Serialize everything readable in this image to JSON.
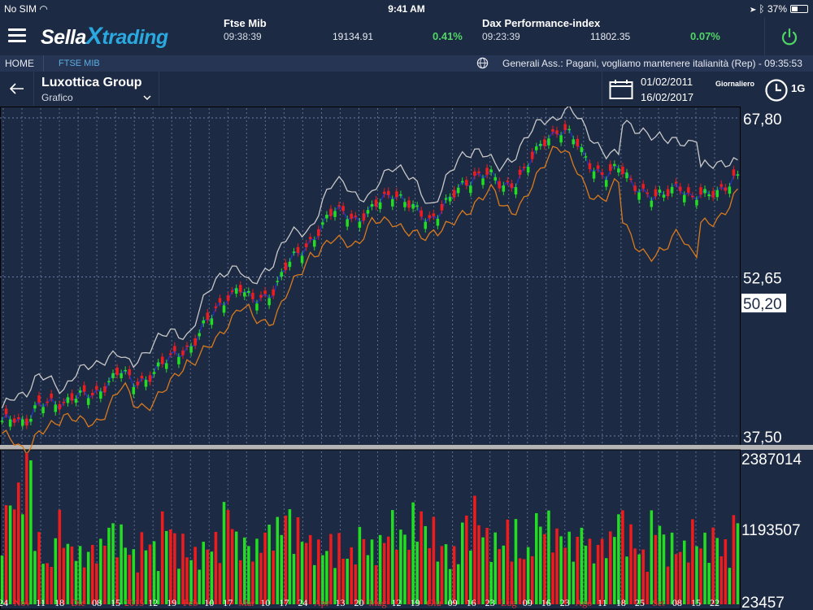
{
  "status_bar": {
    "carrier": "No SIM",
    "time": "9:41 AM",
    "battery": "37%"
  },
  "header": {
    "logo_part1": "Sella",
    "logo_x": "X",
    "logo_part2": "trading",
    "tickers": [
      {
        "name": "Ftse Mib",
        "time": "09:38:39",
        "value": "19134.91",
        "change": "0.41%"
      },
      {
        "name": "Dax Performance-index",
        "time": "09:23:39",
        "value": "11802.35",
        "change": "0.07%"
      }
    ]
  },
  "subnav": {
    "home": "HOME",
    "section": "FTSE MIB",
    "news": "Generali Ass.: Pagani, vogliamo mantenere italianità (Rep)  - 09:35:53"
  },
  "instrument": {
    "name": "Luxottica Group",
    "view": "Grafico",
    "date_from": "01/02/2011",
    "date_to": "16/02/2017",
    "period_label": "Giornaliero",
    "interval": "1G"
  },
  "colors": {
    "up": "#22dd22",
    "down": "#ee1c1c",
    "bg": "#1d2a44",
    "upper_band": "#c8c8c8",
    "lower_band": "#d97a1c",
    "mid_band": "#2233cc",
    "accent": "#2aa9e0",
    "change_positive": "#4fd665"
  },
  "chart_data": {
    "type": "candlestick+volume",
    "price_axis": {
      "ticks": [
        67.8,
        52.65,
        37.5
      ],
      "current": 50.2,
      "range": [
        37.5,
        67.8
      ]
    },
    "volume_axis": {
      "ticks": [
        "2387014",
        "1193507",
        "23457"
      ]
    },
    "x_labels": [
      {
        "text": "24",
        "color": "#ffffff"
      },
      {
        "text": "Nov",
        "color": "#ee3333"
      },
      {
        "text": "11",
        "color": "#ffffff"
      },
      {
        "text": "18",
        "color": "#ffffff"
      },
      {
        "text": "Dic",
        "color": "#ee3333"
      },
      {
        "text": "08",
        "color": "#ffffff"
      },
      {
        "text": "15",
        "color": "#ffffff"
      },
      {
        "text": "2015",
        "color": "#ee3333"
      },
      {
        "text": "12",
        "color": "#ffffff"
      },
      {
        "text": "19",
        "color": "#ffffff"
      },
      {
        "text": "Feb",
        "color": "#ee3333"
      },
      {
        "text": "10",
        "color": "#ffffff"
      },
      {
        "text": "17",
        "color": "#ffffff"
      },
      {
        "text": "Mar",
        "color": "#ee3333"
      },
      {
        "text": "10",
        "color": "#ffffff"
      },
      {
        "text": "17",
        "color": "#ffffff"
      },
      {
        "text": "24",
        "color": "#ffffff"
      },
      {
        "text": "Apr",
        "color": "#ee3333"
      },
      {
        "text": "13",
        "color": "#ffffff"
      },
      {
        "text": "20",
        "color": "#ffffff"
      },
      {
        "text": "Mag",
        "color": "#ee3333"
      },
      {
        "text": "12",
        "color": "#ffffff"
      },
      {
        "text": "19",
        "color": "#ffffff"
      },
      {
        "text": "Giu",
        "color": "#ee3333"
      },
      {
        "text": "09",
        "color": "#ffffff"
      },
      {
        "text": "16",
        "color": "#ffffff"
      },
      {
        "text": "23",
        "color": "#ffffff"
      },
      {
        "text": "Lug",
        "color": "#ee3333"
      },
      {
        "text": "09",
        "color": "#ffffff"
      },
      {
        "text": "16",
        "color": "#ffffff"
      },
      {
        "text": "23",
        "color": "#ffffff"
      },
      {
        "text": "Ago",
        "color": "#ee3333"
      },
      {
        "text": "11",
        "color": "#ffffff"
      },
      {
        "text": "18",
        "color": "#ffffff"
      },
      {
        "text": "25",
        "color": "#ffffff"
      },
      {
        "text": "Set",
        "color": "#ee3333"
      },
      {
        "text": "08",
        "color": "#ffffff"
      },
      {
        "text": "15",
        "color": "#ffffff"
      },
      {
        "text": "22",
        "color": "#ffffff"
      }
    ],
    "close_series": [
      38.6,
      39.3,
      39.0,
      40.2,
      40.5,
      40.8,
      41.3,
      41.1,
      41.6,
      42.9,
      43.6,
      42.4,
      43.0,
      43.8,
      44.6,
      45.6,
      46.2,
      47.8,
      49.4,
      51.0,
      51.6,
      50.2,
      50.8,
      51.6,
      53.6,
      54.9,
      56.2,
      57.4,
      58.9,
      59.0,
      58.0,
      58.6,
      60.2,
      60.9,
      59.6,
      58.8,
      58.2,
      59.1,
      60.2,
      61.6,
      62.5,
      62.4,
      61.2,
      61.6,
      62.8,
      64.3,
      66.0,
      66.9,
      66.0,
      64.1,
      63.0,
      62.3,
      62.9,
      61.9,
      60.9,
      59.9,
      60.6,
      61.8,
      60.0,
      60.2,
      60.9,
      61.4,
      61.9
    ],
    "volume_series": [
      1400000,
      1700000,
      2387014,
      1000000,
      600000,
      1300000,
      900000,
      800000,
      900000,
      1200000,
      1100000,
      800000,
      1000000,
      900000,
      1300000,
      1000000,
      800000,
      900000,
      1000000,
      1500000,
      1000000,
      900000,
      1100000,
      1200000,
      1400000,
      1200000,
      1000000,
      900000,
      1000000,
      800000,
      1100000,
      900000,
      1000000,
      1300000,
      1100000,
      1400000,
      1200000,
      900000,
      800000,
      1300000,
      1500000,
      1100000,
      1000000,
      1200000,
      800000,
      1300000,
      1300000,
      1100000,
      1000000,
      1200000,
      900000,
      1000000,
      1400000,
      1100000,
      800000,
      1300000,
      1000000,
      900000,
      1200000,
      1000000,
      1100000,
      900000,
      1300000
    ]
  }
}
